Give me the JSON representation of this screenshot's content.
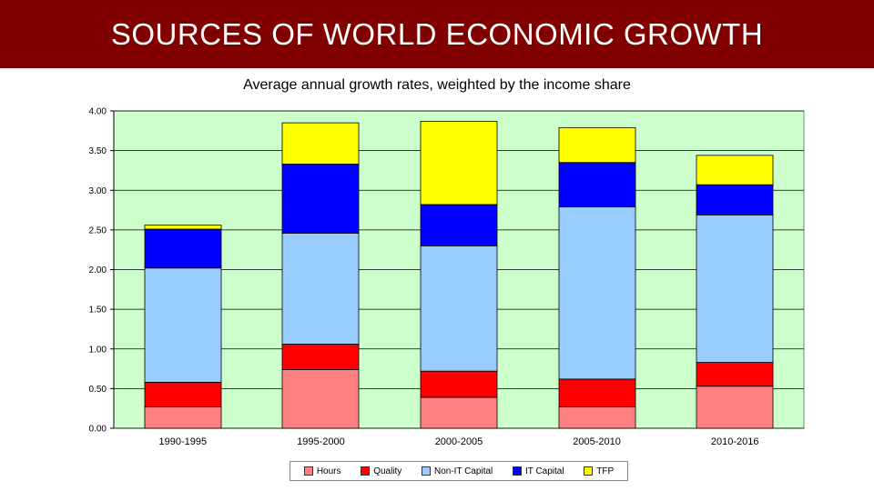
{
  "header": {
    "title": "SOURCES OF WORLD ECONOMIC GROWTH"
  },
  "chart_data": {
    "type": "bar",
    "stacked": true,
    "title": "Average annual growth rates, weighted by the income share",
    "xlabel": "",
    "ylabel": "",
    "ylim": [
      0,
      4
    ],
    "yticks": [
      "0.00",
      "0.50",
      "1.00",
      "1.50",
      "2.00",
      "2.50",
      "3.00",
      "3.50",
      "4.00"
    ],
    "grid": true,
    "legend_position": "bottom",
    "categories": [
      "1990-1995",
      "1995-2000",
      "2000-2005",
      "2005-2010",
      "2010-2016"
    ],
    "series": [
      {
        "name": "Hours",
        "color": "#ff8080",
        "values": [
          0.27,
          0.74,
          0.39,
          0.27,
          0.53
        ]
      },
      {
        "name": "Quality",
        "color": "#ff0000",
        "values": [
          0.31,
          0.32,
          0.33,
          0.35,
          0.3
        ]
      },
      {
        "name": "Non-IT Capital",
        "color": "#99ccff",
        "values": [
          1.44,
          1.4,
          1.58,
          2.17,
          1.86
        ]
      },
      {
        "name": "IT Capital",
        "color": "#0000ff",
        "values": [
          0.49,
          0.87,
          0.52,
          0.56,
          0.38
        ]
      },
      {
        "name": "TFP",
        "color": "#ffff00",
        "values": [
          0.05,
          0.52,
          1.05,
          0.44,
          0.37
        ]
      }
    ],
    "plot_background": "#ccffcc"
  }
}
